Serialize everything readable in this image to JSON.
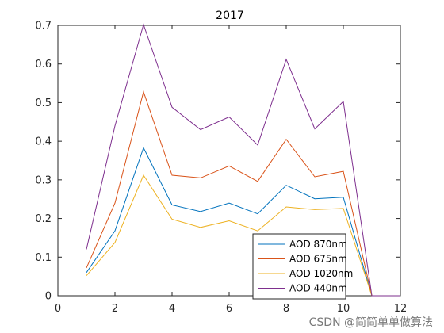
{
  "chart_data": {
    "type": "line",
    "title": "2017",
    "xlabel": "",
    "ylabel": "",
    "xlim": [
      0,
      12
    ],
    "ylim": [
      0,
      0.7
    ],
    "xticks": [
      0,
      2,
      4,
      6,
      8,
      10,
      12
    ],
    "yticks": [
      0,
      0.1,
      0.2,
      0.3,
      0.4,
      0.5,
      0.6,
      0.7
    ],
    "xtick_labels": [
      "0",
      "2",
      "4",
      "6",
      "8",
      "10",
      "12"
    ],
    "ytick_labels": [
      "0",
      "0.1",
      "0.2",
      "0.3",
      "0.4",
      "0.5",
      "0.6",
      "0.7"
    ],
    "grid": false,
    "legend_position": "bottom-right",
    "x": [
      1,
      2,
      3,
      4,
      5,
      6,
      7,
      8,
      9,
      10,
      11,
      12
    ],
    "series": [
      {
        "name": "AOD 870nm",
        "color": "#0072bd",
        "values": [
          0.06,
          0.168,
          0.383,
          0.235,
          0.218,
          0.24,
          0.212,
          0.286,
          0.251,
          0.255,
          0.0,
          0.0
        ]
      },
      {
        "name": "AOD 675nm",
        "color": "#d95319",
        "values": [
          0.072,
          0.24,
          0.528,
          0.312,
          0.305,
          0.336,
          0.296,
          0.405,
          0.308,
          0.322,
          0.0,
          0.0
        ]
      },
      {
        "name": "AOD 1020nm",
        "color": "#edb120",
        "values": [
          0.052,
          0.138,
          0.312,
          0.198,
          0.177,
          0.194,
          0.168,
          0.23,
          0.223,
          0.226,
          0.0,
          0.0
        ]
      },
      {
        "name": "AOD 440nm",
        "color": "#7e2f8e",
        "values": [
          0.12,
          0.44,
          0.702,
          0.488,
          0.43,
          0.463,
          0.39,
          0.612,
          0.432,
          0.503,
          0.0,
          0.0
        ]
      }
    ]
  },
  "watermark": "CSDN @简简单单做算法"
}
